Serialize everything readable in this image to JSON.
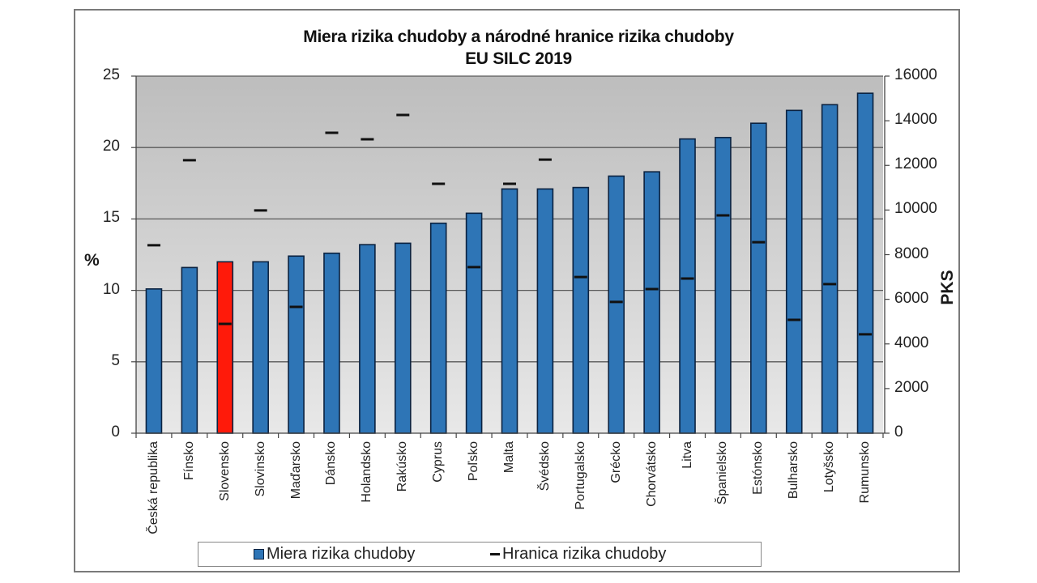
{
  "chart_data": {
    "type": "bar",
    "title": "Miera rizika chudoby a národné hranice rizika chudoby",
    "subtitle": "EU SILC 2019",
    "xlabel": "",
    "ylabel": "%",
    "y2label": "PKS",
    "ylim": [
      0,
      25
    ],
    "y2lim": [
      0,
      16000
    ],
    "yticks": [
      0,
      5,
      10,
      15,
      20,
      25
    ],
    "y2ticks": [
      0,
      2000,
      4000,
      6000,
      8000,
      10000,
      12000,
      14000,
      16000
    ],
    "grid": true,
    "legend_position": "bottom",
    "categories": [
      "Česká republika",
      "Fínsko",
      "Slovensko",
      "Slovinsko",
      "Maďarsko",
      "Dánsko",
      "Holandsko",
      "Rakúsko",
      "Cyprus",
      "Poľsko",
      "Malta",
      "Švédsko",
      "Portugalsko",
      "Grécko",
      "Chorvátsko",
      "Litva",
      "Španielsko",
      "Estónsko",
      "Bulharsko",
      "Lotyšsko",
      "Rumunsko"
    ],
    "highlight_category": "Slovensko",
    "series": [
      {
        "name": "Miera rizika chudoby",
        "type": "bar",
        "axis": "left",
        "color": "#2e75b6",
        "highlight_color": "#ff1a0a",
        "values": [
          10.1,
          11.6,
          12.0,
          12.0,
          12.4,
          12.6,
          13.2,
          13.3,
          14.7,
          15.4,
          17.1,
          17.1,
          17.2,
          18.0,
          18.3,
          20.6,
          20.7,
          21.7,
          22.6,
          23.0,
          23.8
        ]
      },
      {
        "name": "Hranica rizika chudoby",
        "type": "marker",
        "axis": "right",
        "color": "#111111",
        "values": [
          8420,
          12230,
          4900,
          9980,
          5660,
          13460,
          13170,
          14260,
          11175,
          7440,
          11175,
          12260,
          7000,
          5880,
          6460,
          6930,
          9760,
          8560,
          5080,
          6680,
          4430
        ]
      }
    ]
  },
  "title": {
    "line1": "Miera rizika chudoby a národné hranice rizika chudoby",
    "line2": "EU SILC 2019"
  },
  "axes": {
    "left_label": "%",
    "right_label": "PKS",
    "left_ticks": [
      "25",
      "20",
      "15",
      "10",
      "5",
      "0"
    ],
    "right_ticks": [
      "16000",
      "14000",
      "12000",
      "10000",
      "8000",
      "6000",
      "4000",
      "2000",
      "0"
    ]
  },
  "legend": {
    "bar_label": "Miera rizika chudoby",
    "line_label": "Hranica rizika chudoby"
  },
  "colors": {
    "bar": "#2e75b6",
    "bar_highlight": "#ff1a0a",
    "bar_border": "#0b2240",
    "bg_top": "#bdbdbd",
    "bg_bottom": "#e8e8e8"
  }
}
